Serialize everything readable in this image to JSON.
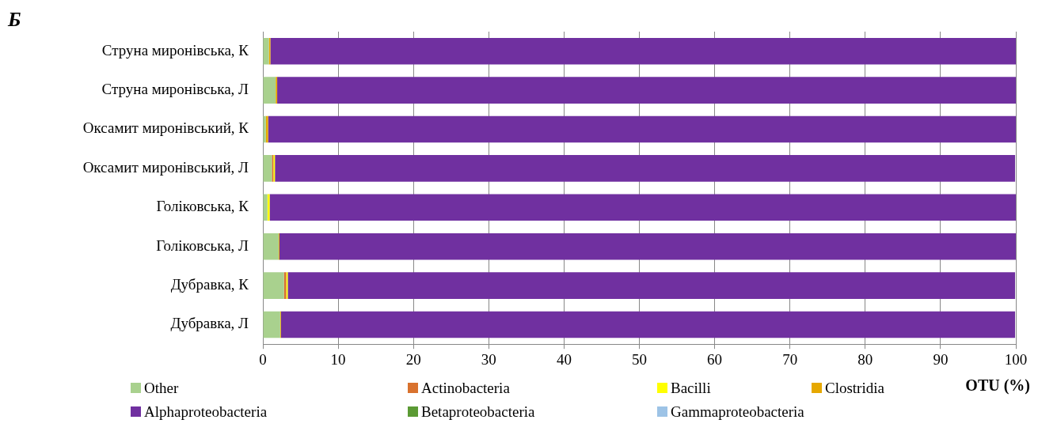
{
  "chart_data": {
    "type": "bar",
    "orientation": "horizontal",
    "stacked": true,
    "title": "Б",
    "xlabel": "OTU (%)",
    "categories": [
      "Струна миронівська, К",
      "Струна миронівська, Л",
      "Оксамит миронівський, К",
      "Оксамит миронівський, Л",
      "Голіковська, К",
      "Голіковська, Л",
      "Дубравка, К",
      "Дубравка, Л"
    ],
    "series": [
      {
        "name": "Other",
        "color": "#a9d18e",
        "values": [
          0.8,
          1.7,
          0.4,
          1.2,
          0.6,
          2.1,
          2.8,
          2.3
        ]
      },
      {
        "name": "Actinobacteria",
        "color": "#d9722e",
        "values": [
          0,
          0,
          0,
          0.2,
          0,
          0,
          0.3,
          0
        ]
      },
      {
        "name": "Bacilli",
        "color": "#ffff00",
        "values": [
          0,
          0,
          0,
          0.2,
          0.3,
          0,
          0.2,
          0
        ]
      },
      {
        "name": "Clostridia",
        "color": "#e6a800",
        "values": [
          0.2,
          0.2,
          0.3,
          0,
          0,
          0.1,
          0,
          0.1
        ]
      },
      {
        "name": "Alphaproteobacteria",
        "color": "#7030a0",
        "values": [
          99.0,
          98.1,
          99.3,
          98.3,
          99.1,
          97.8,
          96.6,
          97.5
        ]
      },
      {
        "name": "Betaproteobacteria",
        "color": "#5b9a34",
        "values": [
          0,
          0,
          0,
          0,
          0,
          0,
          0,
          0
        ]
      },
      {
        "name": "Gammaproteobacteria",
        "color": "#9dc3e6",
        "values": [
          0,
          0,
          0,
          0,
          0,
          0,
          0,
          0
        ]
      }
    ],
    "xlim": [
      0,
      100
    ],
    "xticks": [
      0,
      10,
      20,
      30,
      40,
      50,
      60,
      70,
      80,
      90,
      100
    ],
    "grid": "x",
    "legend": "bottom"
  }
}
